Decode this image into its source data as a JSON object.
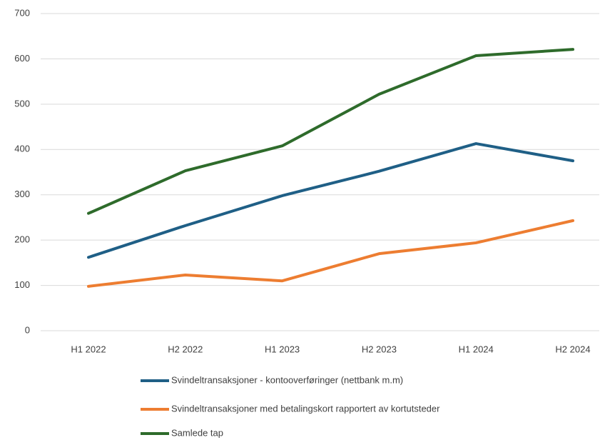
{
  "chart_data": {
    "type": "line",
    "categories": [
      "H1 2022",
      "H2 2022",
      "H1 2023",
      "H2 2023",
      "H1 2024",
      "H2 2024"
    ],
    "series": [
      {
        "name": "Svindeltransaksjoner - kontooverføringer (nettbank m.m)",
        "color": "#1f5f86",
        "values": [
          162,
          232,
          298,
          352,
          413,
          375
        ]
      },
      {
        "name": "Svindeltransaksjoner med betalingskort rapportert av kortutsteder",
        "color": "#ed7d31",
        "values": [
          98,
          123,
          110,
          170,
          194,
          243
        ]
      },
      {
        "name": "Samlede tap",
        "color": "#2e6b2b",
        "values": [
          259,
          353,
          408,
          522,
          607,
          621
        ]
      }
    ],
    "ylim": [
      0,
      700
    ],
    "yticks": [
      0,
      100,
      200,
      300,
      400,
      500,
      600,
      700
    ],
    "grid": true,
    "legend": "bottom"
  }
}
